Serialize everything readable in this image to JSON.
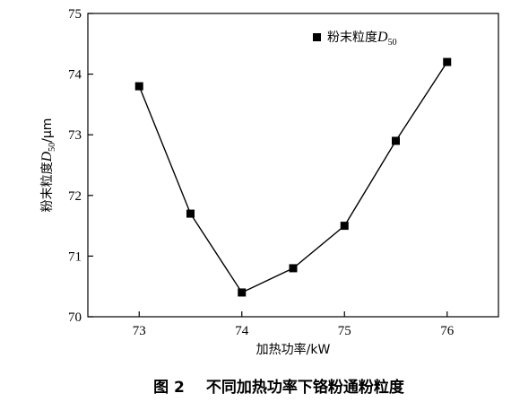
{
  "chart_data": {
    "type": "line",
    "x": [
      73,
      73.5,
      74,
      74.5,
      75,
      75.5,
      76
    ],
    "series": [
      {
        "name": "粉末粒度D50",
        "name_parts": [
          "粉末粒度",
          "D",
          "50"
        ],
        "values": [
          73.8,
          71.7,
          70.4,
          70.8,
          71.5,
          72.9,
          74.2
        ],
        "marker": "square",
        "color": "#000000"
      }
    ],
    "xlabel": "加热功率/kW",
    "ylabel_parts": [
      "粉末粒度",
      "D",
      "50",
      "/μm"
    ],
    "xlim": [
      72.5,
      76.5
    ],
    "ylim": [
      70,
      75
    ],
    "x_ticks": [
      73,
      74,
      75,
      76
    ],
    "y_ticks": [
      70,
      71,
      72,
      73,
      74,
      75
    ],
    "grid": false,
    "legend": "top-right"
  },
  "caption": {
    "label": "图 2",
    "text": "不同加热功率下铬粉通粉粒度"
  }
}
